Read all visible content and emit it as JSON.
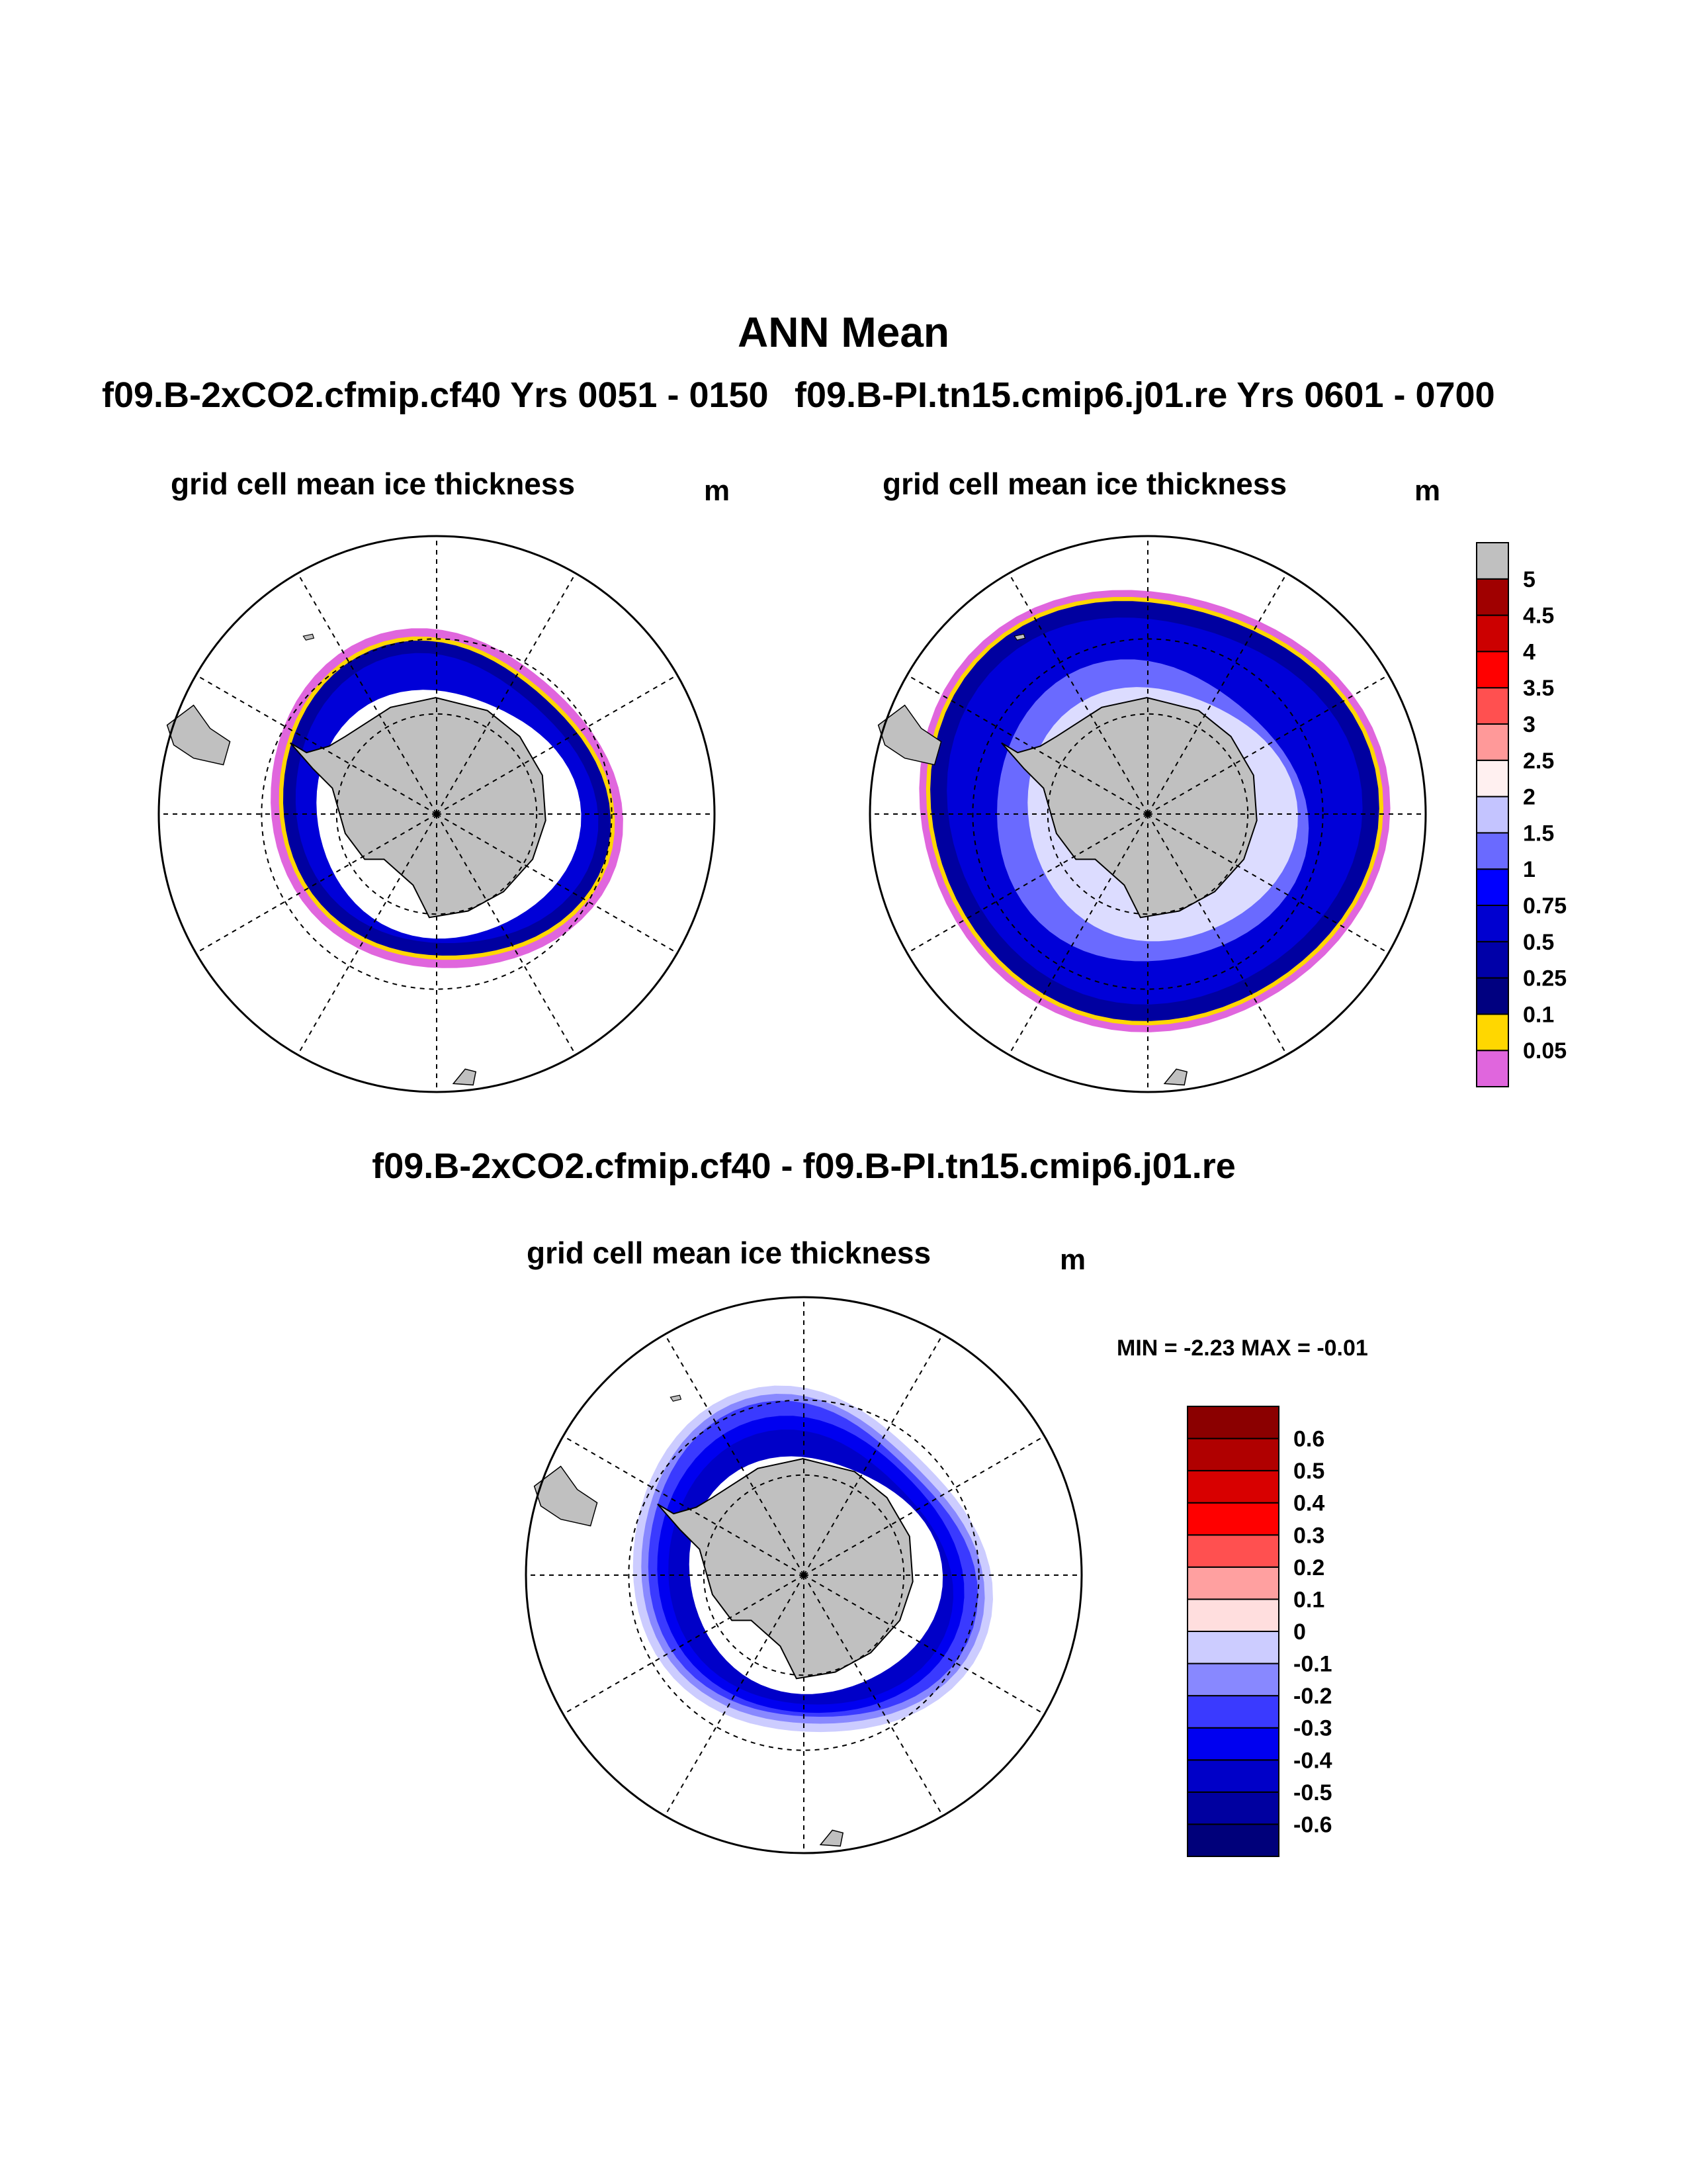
{
  "main_title": "ANN Mean",
  "run_a_label": "f09.B-2xCO2.cfmip.cf40  Yrs 0051 - 0150",
  "run_b_label": "f09.B-PI.tn15.cmip6.j01.re  Yrs 0601 - 0700",
  "diff_heading": "f09.B-2xCO2.cfmip.cf40 - f09.B-PI.tn15.cmip6.j01.re",
  "panels": [
    {
      "title": "grid cell mean ice thickness",
      "unit": "m"
    },
    {
      "title": "grid cell mean ice thickness",
      "unit": "m"
    },
    {
      "title": "grid cell mean ice thickness",
      "unit": "m"
    }
  ],
  "minmax_text": "MIN =  -2.23 MAX =  -0.01",
  "colors": {
    "land": "#c0c0c0",
    "ocean": "#ffffff",
    "ice_dark": "#0000a0",
    "ice_mid": "#0000d8",
    "ice_light": "#6a6aff",
    "edge_yellow": "#ffd700",
    "edge_magenta": "#e066dd"
  },
  "chart_data": [
    {
      "type": "heatmap",
      "projection": "south polar stereographic",
      "title": "grid cell mean ice thickness",
      "units": "m",
      "colorbar": {
        "levels": [
          "0.05",
          "0.1",
          "0.25",
          "0.5",
          "0.75",
          "1",
          "1.5",
          "2",
          "2.5",
          "3",
          "3.5",
          "4",
          "4.5",
          "5"
        ],
        "colors": [
          "#e066dd",
          "#ffd700",
          "#000080",
          "#0000a8",
          "#0000d0",
          "#0000ff",
          "#6a6aff",
          "#c4c4ff",
          "#fff0f0",
          "#ff9999",
          "#ff5050",
          "#ff0000",
          "#cc0000",
          "#a00000",
          "#c0c0c0"
        ]
      }
    },
    {
      "type": "heatmap",
      "projection": "south polar stereographic",
      "title": "grid cell mean ice thickness",
      "units": "m",
      "colorbar": "shared with panel 1"
    },
    {
      "type": "heatmap",
      "projection": "south polar stereographic",
      "title": "grid cell mean ice thickness",
      "units": "m",
      "min": -2.23,
      "max": -0.01,
      "colorbar": {
        "levels": [
          "-0.6",
          "-0.5",
          "-0.4",
          "-0.3",
          "-0.2",
          "-0.1",
          "0",
          "0.1",
          "0.2",
          "0.3",
          "0.4",
          "0.5",
          "0.6"
        ],
        "colors": [
          "#00007a",
          "#0000a0",
          "#0000c8",
          "#0000f0",
          "#3a3aff",
          "#8888ff",
          "#ccccff",
          "#ffdede",
          "#ffa0a0",
          "#ff5050",
          "#ff0000",
          "#d80000",
          "#b00000",
          "#8b0000"
        ]
      }
    }
  ]
}
